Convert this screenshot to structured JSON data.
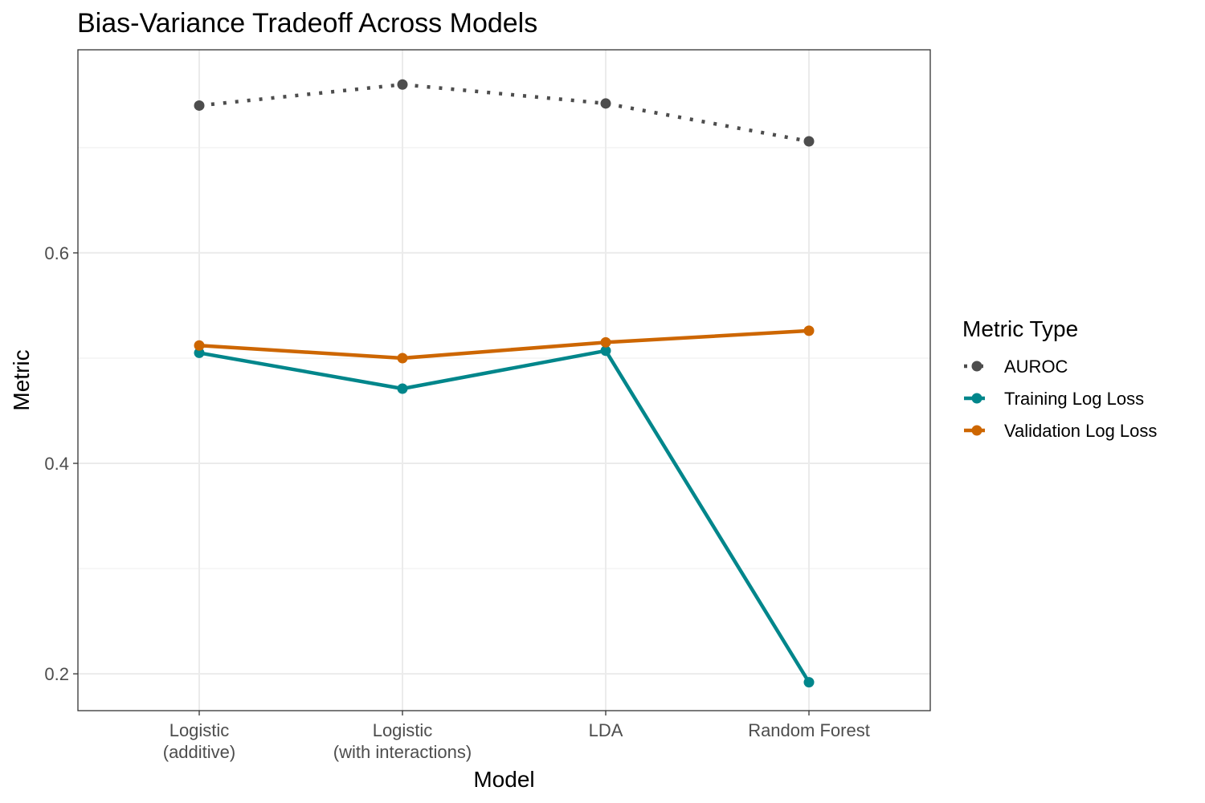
{
  "chart_data": {
    "type": "line",
    "title": "Bias-Variance Tradeoff Across Models",
    "xlabel": "Model",
    "ylabel": "Metric",
    "categories": [
      [
        "Logistic",
        "(additive)"
      ],
      [
        "Logistic",
        "(with interactions)"
      ],
      [
        "LDA"
      ],
      [
        "Random Forest"
      ]
    ],
    "ylim": [
      0.165,
      0.793
    ],
    "yticks": [
      "0.2",
      "0.4",
      "0.6"
    ],
    "ytick_values": [
      0.2,
      0.4,
      0.6
    ],
    "grid": true,
    "legend": {
      "title": "Metric Type",
      "position": "right"
    },
    "series": [
      {
        "name": "AUROC",
        "color": "#4d4d4d",
        "dash": "dotted",
        "values": [
          0.74,
          0.76,
          0.742,
          0.706
        ]
      },
      {
        "name": "Training Log Loss",
        "color": "#00868b",
        "dash": "solid",
        "values": [
          0.505,
          0.471,
          0.507,
          0.192
        ]
      },
      {
        "name": "Validation Log Loss",
        "color": "#cd6600",
        "dash": "solid",
        "values": [
          0.512,
          0.5,
          0.515,
          0.526
        ]
      }
    ]
  }
}
